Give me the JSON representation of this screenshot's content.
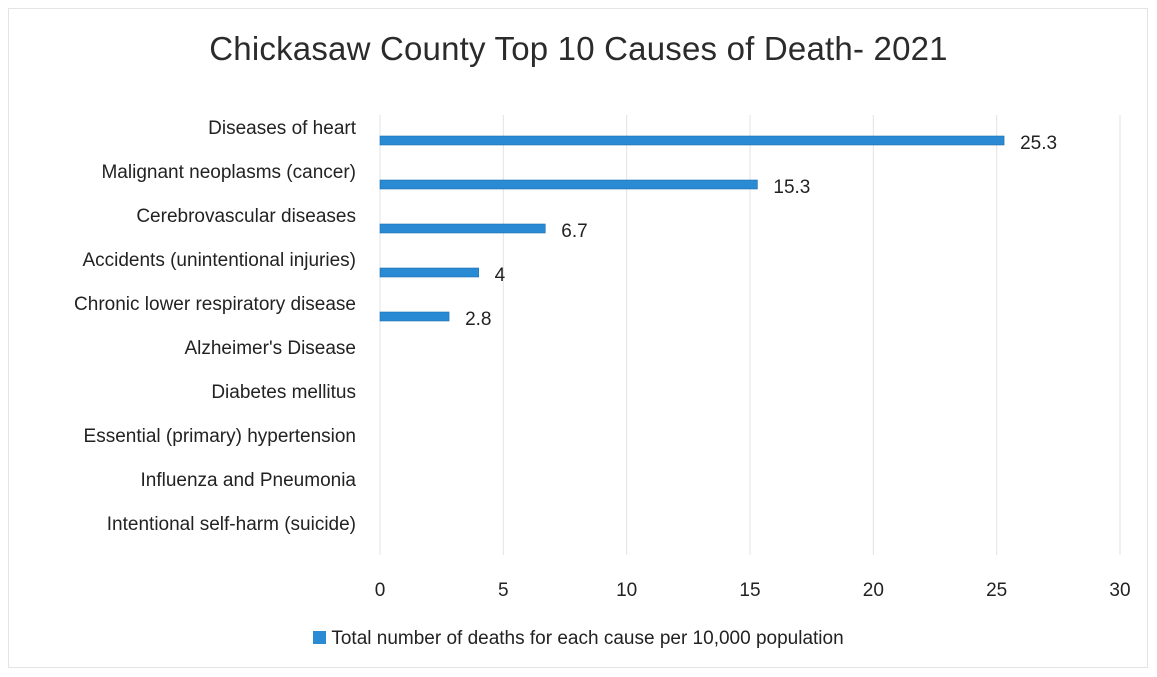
{
  "chart_data": {
    "type": "bar",
    "orientation": "horizontal",
    "title": "Chickasaw County Top 10 Causes of Death- 2021",
    "categories": [
      "Diseases of heart",
      "Malignant neoplasms (cancer)",
      "Cerebrovascular diseases",
      "Accidents (unintentional injuries)",
      "Chronic lower respiratory disease",
      "Alzheimer's Disease",
      "Diabetes mellitus",
      "Essential (primary) hypertension",
      "Influenza and Pneumonia",
      "Intentional self-harm (suicide)"
    ],
    "series": [
      {
        "name": "Total number of deaths for each cause per 10,000 population",
        "values": [
          25.3,
          15.3,
          6.7,
          4,
          2.8,
          null,
          null,
          null,
          null,
          null
        ],
        "labels": [
          "25.3",
          "15.3",
          "6.7",
          "4",
          "2.8",
          "",
          "",
          "",
          "",
          ""
        ],
        "color": "#2a8ad4"
      }
    ],
    "xlim": [
      0,
      30
    ],
    "xticks": [
      0,
      5,
      10,
      15,
      20,
      25,
      30
    ],
    "xlabel": "",
    "ylabel": "",
    "grid": "vertical",
    "legend": "bottom"
  }
}
